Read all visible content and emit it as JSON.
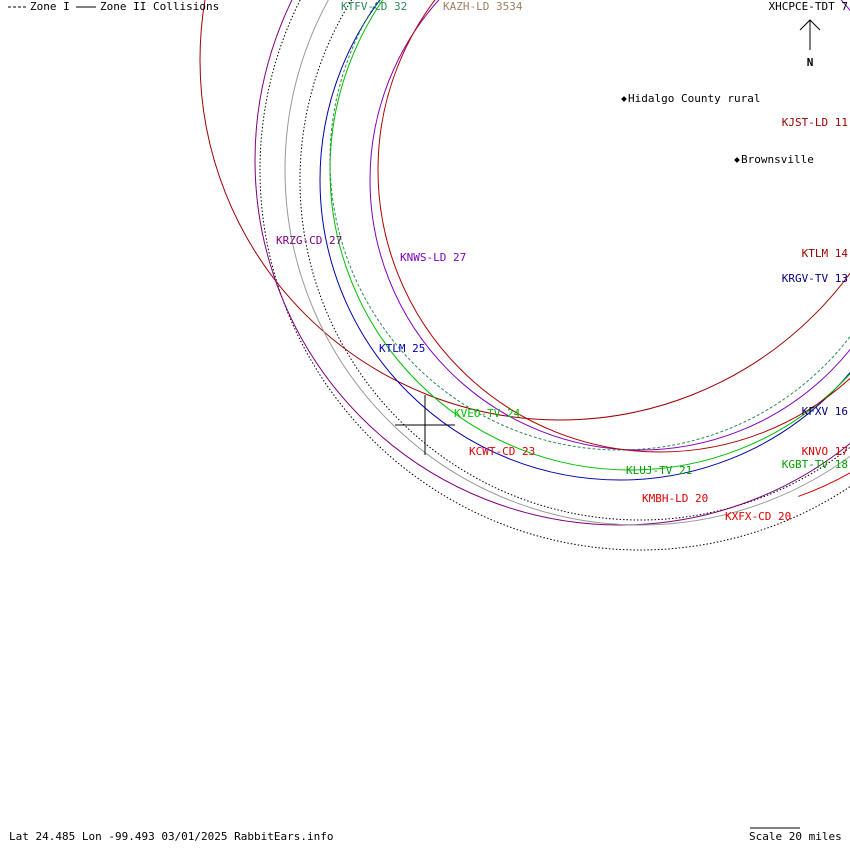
{
  "legend": {
    "zone1": "Zone I",
    "zone2": "Zone II Collisions"
  },
  "compass": "N",
  "stations": [
    "KTFV-CD 32",
    "KAZH-LD 3534",
    "XHCPCE-TDT 7",
    "KJST-LD 11",
    "KRZG-CD 27",
    "KNWS-LD 27",
    "KTLM 14",
    "KRGV-TV 13",
    "KTLM 25",
    "KVEO-TV 24",
    "KFXV 16",
    "KCWT-CD 23",
    "KNVO 17",
    "KGBT-TV 18",
    "KLUJ-TV 21",
    "KMBH-LD 20",
    "KXFX-CD 20"
  ],
  "places": [
    "Hidalgo County rural",
    "Brownsville"
  ],
  "footer": "Lat 24.485 Lon -99.493 03/01/2025 RabbitEars.info",
  "scale": "Scale 20 miles"
}
